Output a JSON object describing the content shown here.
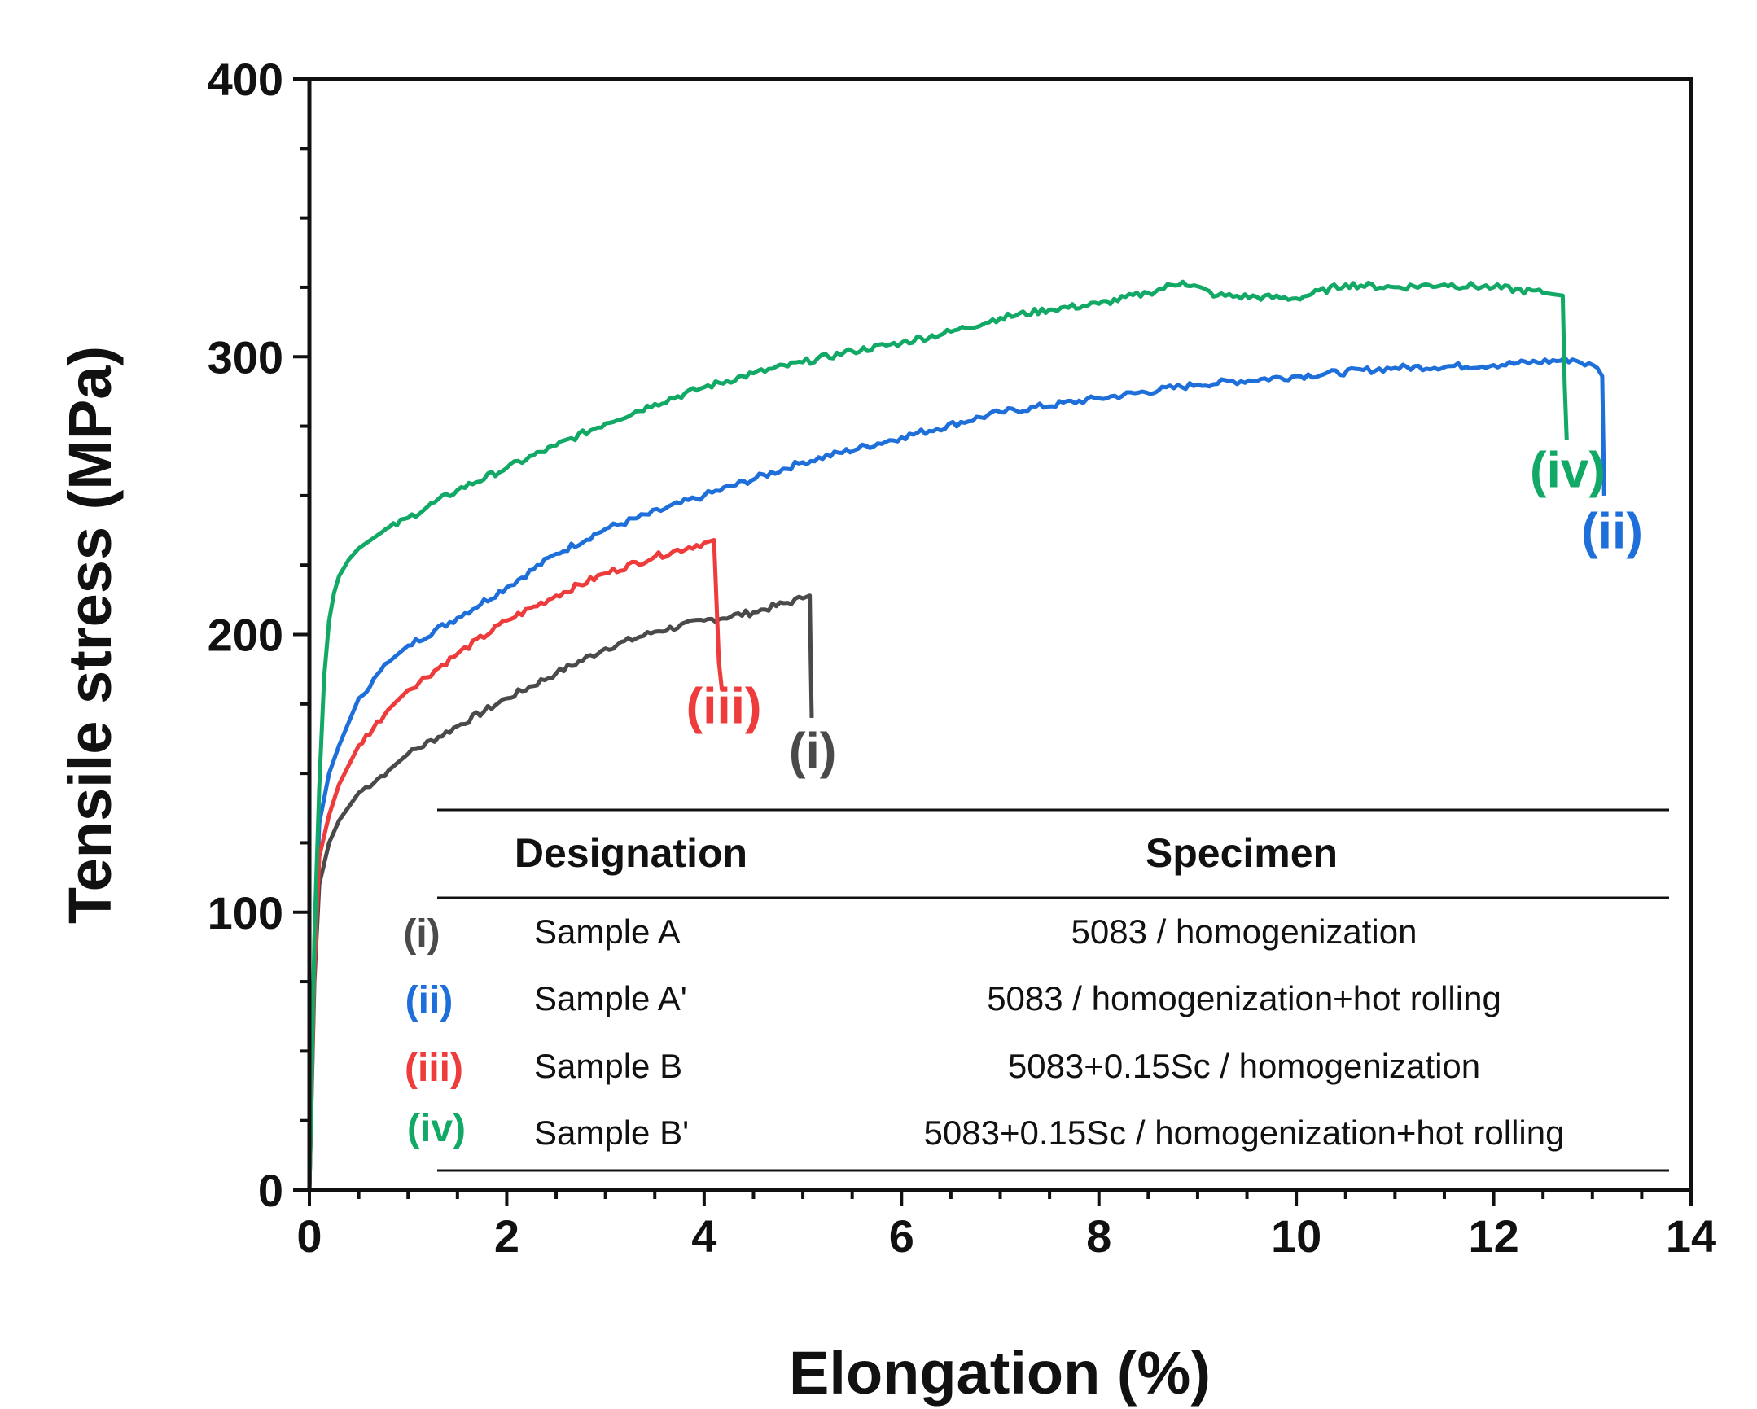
{
  "chart_data": {
    "type": "line",
    "xlabel": "Elongation (%)",
    "ylabel": "Tensile stress (MPa)",
    "xlim": [
      0,
      14
    ],
    "ylim": [
      0,
      400
    ],
    "xticks": [
      0,
      2,
      4,
      6,
      8,
      10,
      12,
      14
    ],
    "yticks": [
      0,
      100,
      200,
      300,
      400
    ],
    "series": [
      {
        "id": "i",
        "label": "(i)",
        "color": "#4a4a4a",
        "points": [
          [
            0,
            0
          ],
          [
            0.05,
            75
          ],
          [
            0.1,
            110
          ],
          [
            0.2,
            125
          ],
          [
            0.3,
            133
          ],
          [
            0.5,
            143
          ],
          [
            0.8,
            151
          ],
          [
            1.0,
            157
          ],
          [
            1.5,
            167
          ],
          [
            2.0,
            177
          ],
          [
            2.5,
            186
          ],
          [
            3.0,
            195
          ],
          [
            3.5,
            201
          ],
          [
            4.0,
            205
          ],
          [
            4.5,
            208
          ],
          [
            5.0,
            213
          ],
          [
            5.07,
            214
          ],
          [
            5.08,
            190
          ],
          [
            5.09,
            170
          ]
        ]
      },
      {
        "id": "ii",
        "label": "(ii)",
        "color": "#1e6fd9",
        "points": [
          [
            0,
            0
          ],
          [
            0.05,
            85
          ],
          [
            0.1,
            132
          ],
          [
            0.2,
            150
          ],
          [
            0.3,
            160
          ],
          [
            0.5,
            177
          ],
          [
            0.8,
            190
          ],
          [
            1.0,
            196
          ],
          [
            1.5,
            206
          ],
          [
            2.0,
            217
          ],
          [
            2.5,
            229
          ],
          [
            3.0,
            238
          ],
          [
            4.0,
            250
          ],
          [
            5.0,
            262
          ],
          [
            6.0,
            271
          ],
          [
            7.0,
            280
          ],
          [
            8.0,
            285
          ],
          [
            9.0,
            290
          ],
          [
            10.0,
            293
          ],
          [
            11.0,
            296
          ],
          [
            12.0,
            297
          ],
          [
            12.8,
            299
          ],
          [
            13.05,
            296
          ],
          [
            13.1,
            293
          ],
          [
            13.12,
            250
          ]
        ]
      },
      {
        "id": "iii",
        "label": "(iii)",
        "color": "#ee3b3b",
        "points": [
          [
            0,
            0
          ],
          [
            0.05,
            80
          ],
          [
            0.1,
            120
          ],
          [
            0.2,
            135
          ],
          [
            0.3,
            146
          ],
          [
            0.5,
            160
          ],
          [
            0.8,
            173
          ],
          [
            1.0,
            180
          ],
          [
            1.5,
            193
          ],
          [
            2.0,
            205
          ],
          [
            2.5,
            214
          ],
          [
            3.0,
            222
          ],
          [
            3.5,
            228
          ],
          [
            4.0,
            233
          ],
          [
            4.1,
            234
          ],
          [
            4.15,
            190
          ],
          [
            4.18,
            180
          ]
        ]
      },
      {
        "id": "iv",
        "label": "(iv)",
        "color": "#12a866",
        "points": [
          [
            0,
            0
          ],
          [
            0.05,
            90
          ],
          [
            0.1,
            145
          ],
          [
            0.15,
            185
          ],
          [
            0.2,
            205
          ],
          [
            0.25,
            215
          ],
          [
            0.3,
            221
          ],
          [
            0.4,
            227
          ],
          [
            0.5,
            231
          ],
          [
            0.7,
            236
          ],
          [
            1.0,
            242
          ],
          [
            1.5,
            252
          ],
          [
            2.0,
            260
          ],
          [
            2.5,
            268
          ],
          [
            3.0,
            276
          ],
          [
            3.5,
            283
          ],
          [
            4.0,
            289
          ],
          [
            4.5,
            294
          ],
          [
            5.0,
            298
          ],
          [
            5.5,
            302
          ],
          [
            6.0,
            305
          ],
          [
            6.5,
            309
          ],
          [
            7.0,
            314
          ],
          [
            7.5,
            317
          ],
          [
            8.0,
            319
          ],
          [
            8.5,
            323
          ],
          [
            8.85,
            327
          ],
          [
            9.2,
            322
          ],
          [
            10.0,
            321
          ],
          [
            10.5,
            326
          ],
          [
            11.0,
            325
          ],
          [
            11.5,
            326
          ],
          [
            12.0,
            325
          ],
          [
            12.5,
            323
          ],
          [
            12.7,
            322
          ],
          [
            12.72,
            290
          ],
          [
            12.74,
            270
          ]
        ]
      }
    ],
    "curve_labels": [
      {
        "series": "i",
        "text": "(i)",
        "x": 5.1,
        "y": 152
      },
      {
        "series": "ii",
        "text": "(ii)",
        "x": 13.2,
        "y": 231
      },
      {
        "series": "iii",
        "text": "(iii)",
        "x": 4.2,
        "y": 168
      },
      {
        "series": "iv",
        "text": "(iv)",
        "x": 12.75,
        "y": 253
      }
    ],
    "table": {
      "headers": [
        "Designation",
        "Specimen"
      ],
      "rows": [
        {
          "designation": "(i)",
          "color": "#4a4a4a",
          "sample": "Sample A",
          "specimen": "5083 / homogenization"
        },
        {
          "designation": "(ii)",
          "color": "#1e6fd9",
          "sample": "Sample A'",
          "specimen": "5083 / homogenization+hot rolling"
        },
        {
          "designation": "(iii)",
          "color": "#ee3b3b",
          "sample": "Sample B",
          "specimen": "5083+0.15Sc / homogenization"
        },
        {
          "designation": "(iv)",
          "color": "#12a866",
          "sample": "Sample B'",
          "specimen": "5083+0.15Sc / homogenization+hot rolling"
        }
      ]
    }
  }
}
